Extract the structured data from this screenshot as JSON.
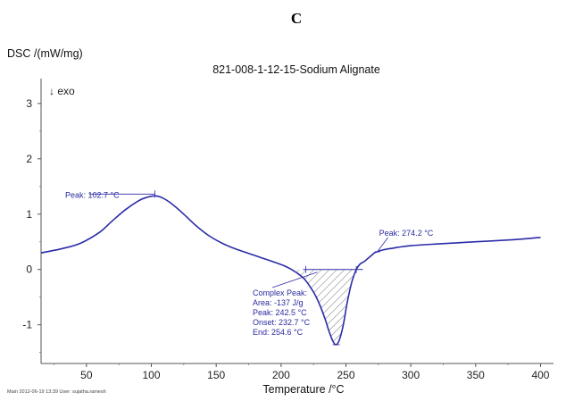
{
  "panel_label": "C",
  "footer": {
    "main": "Main  2012-06-19 13:39   User: sujatha.ramesh"
  },
  "chart_data": {
    "type": "line",
    "title": "821-008-1-12-15-Sodium Alignate",
    "ylabel": "DSC /(mW/mg)",
    "xlabel": "Temperature /°C",
    "exo_label": "↓ exo",
    "xlim": [
      15,
      410
    ],
    "ylim": [
      -1.7,
      3.45
    ],
    "xticks": [
      50,
      100,
      150,
      200,
      250,
      300,
      350,
      400
    ],
    "yticks": [
      -1,
      0,
      1,
      2,
      3
    ],
    "series": [
      {
        "color": "#2b2ba8",
        "x": [
          15,
          30,
          45,
          60,
          70,
          80,
          90,
          96,
          102.7,
          108,
          115,
          125,
          135,
          145,
          155,
          165,
          175,
          185,
          195,
          203,
          208,
          212,
          216,
          219,
          222,
          226,
          230,
          234,
          237,
          240,
          242.5,
          245,
          248,
          251,
          254.6,
          258,
          261,
          264,
          267,
          270,
          272,
          274.2,
          278,
          282,
          285,
          290,
          300,
          320,
          350,
          380,
          400
        ],
        "y": [
          0.3,
          0.37,
          0.47,
          0.67,
          0.88,
          1.08,
          1.24,
          1.3,
          1.33,
          1.3,
          1.2,
          1.0,
          0.78,
          0.6,
          0.47,
          0.37,
          0.29,
          0.21,
          0.13,
          0.06,
          0.0,
          -0.06,
          -0.13,
          -0.2,
          -0.3,
          -0.45,
          -0.65,
          -0.9,
          -1.12,
          -1.3,
          -1.36,
          -1.27,
          -1.0,
          -0.6,
          -0.22,
          0.0,
          0.1,
          0.14,
          0.2,
          0.26,
          0.3,
          0.32,
          0.35,
          0.37,
          0.38,
          0.4,
          0.43,
          0.46,
          0.5,
          0.54,
          0.58
        ]
      }
    ],
    "annotations": [
      {
        "text": "Peak: 102.7 °C"
      },
      {
        "text": "Peak: 274.2 °C"
      },
      {
        "lines": [
          "Complex Peak:",
          "Area:    -137 J/g",
          "Peak:   242.5 °C",
          "Onset:  232.7 °C",
          "End:     254.6 °C"
        ]
      }
    ]
  }
}
